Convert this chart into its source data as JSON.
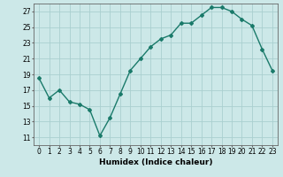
{
  "x": [
    0,
    1,
    2,
    3,
    4,
    5,
    6,
    7,
    8,
    9,
    10,
    11,
    12,
    13,
    14,
    15,
    16,
    17,
    18,
    19,
    20,
    21,
    22,
    23
  ],
  "y": [
    18.5,
    16.0,
    17.0,
    15.5,
    15.2,
    14.5,
    11.2,
    13.5,
    16.5,
    19.5,
    21.0,
    22.5,
    23.5,
    24.0,
    25.5,
    25.5,
    26.5,
    27.5,
    27.5,
    27.0,
    26.0,
    25.2,
    22.2,
    19.5
  ],
  "line_color": "#1a7a6a",
  "marker": "D",
  "marker_size": 2.0,
  "bg_color": "#cce8e8",
  "grid_color": "#aacfcf",
  "xlabel": "Humidex (Indice chaleur)",
  "xlim": [
    -0.5,
    23.5
  ],
  "ylim": [
    10,
    28
  ],
  "yticks": [
    11,
    13,
    15,
    17,
    19,
    21,
    23,
    25,
    27
  ],
  "xticks": [
    0,
    1,
    2,
    3,
    4,
    5,
    6,
    7,
    8,
    9,
    10,
    11,
    12,
    13,
    14,
    15,
    16,
    17,
    18,
    19,
    20,
    21,
    22,
    23
  ],
  "xlabel_fontsize": 6.5,
  "tick_fontsize": 5.5,
  "line_width": 1.0
}
